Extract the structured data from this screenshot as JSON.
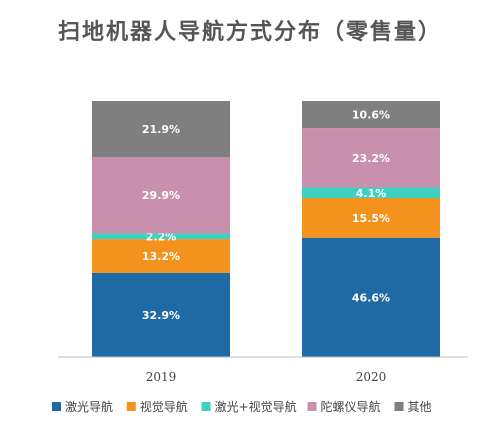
{
  "title": "扫地机器人导航方式分布（零售量）",
  "chart_data": {
    "type": "bar",
    "stacked": true,
    "percent_stacked": true,
    "title": "扫地机器人导航方式分布（零售量）",
    "categories": [
      "2019",
      "2020"
    ],
    "series": [
      {
        "name": "激光导航",
        "values": [
          32.9,
          46.6
        ],
        "labels": [
          "32.9%",
          "46.6%"
        ],
        "color": "#1f6aa5"
      },
      {
        "name": "视觉导航",
        "values": [
          13.2,
          15.5
        ],
        "labels": [
          "13.2%",
          "15.5%"
        ],
        "color": "#f3921c"
      },
      {
        "name": "激光+视觉导航",
        "values": [
          2.2,
          4.1
        ],
        "labels": [
          "2.2%",
          "4.1%"
        ],
        "color": "#3ed0c0"
      },
      {
        "name": "陀螺仪导航",
        "values": [
          29.9,
          23.2
        ],
        "labels": [
          "29.9%",
          "23.2%"
        ],
        "color": "#c890ac"
      },
      {
        "name": "其他",
        "values": [
          21.9,
          10.6
        ],
        "labels": [
          "21.9%",
          "10.6%"
        ],
        "color": "#7f7f7f"
      }
    ],
    "ylim": [
      0,
      100
    ],
    "grid": false,
    "legend_position": "bottom"
  }
}
